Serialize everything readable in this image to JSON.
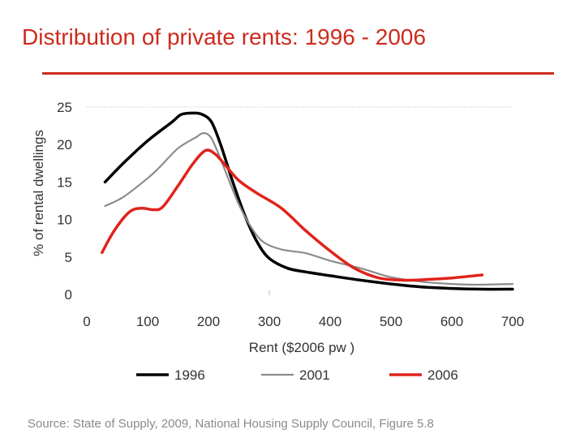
{
  "slide": {
    "title": "Distribution of private rents: 1996 - 2006",
    "source": "Source: State of Supply, 2009, National Housing Supply Council, Figure 5.8"
  },
  "colors": {
    "title": "#cc2b1d",
    "series_1996": "#000000",
    "series_2001": "#8c8c8c",
    "series_2006": "#e0231b",
    "axis_text": "#333333",
    "gridline": "#bfbfbf"
  },
  "chart_data": {
    "type": "line",
    "title": "",
    "xlabel": "Rent ($2006 pw )",
    "ylabel": "% of rental dwellings",
    "xlim": [
      0,
      700
    ],
    "ylim": [
      0,
      25
    ],
    "xticks": [
      0,
      100,
      200,
      300,
      400,
      500,
      600,
      700
    ],
    "yticks": [
      0,
      5,
      10,
      15,
      20,
      25
    ],
    "grid": "top gridline only",
    "legend_position": "bottom",
    "series": [
      {
        "name": "1996",
        "color": "#000000",
        "x": [
          30,
          60,
          100,
          140,
          155,
          175,
          190,
          205,
          220,
          240,
          260,
          280,
          300,
          330,
          360,
          400,
          450,
          500,
          550,
          600,
          650,
          700
        ],
        "y": [
          15,
          17.5,
          20.5,
          23,
          24,
          24.2,
          24,
          23,
          20,
          15,
          10.5,
          7,
          4.8,
          3.5,
          3,
          2.5,
          1.9,
          1.4,
          1,
          0.8,
          0.7,
          0.7
        ]
      },
      {
        "name": "2001",
        "color": "#8c8c8c",
        "x": [
          30,
          60,
          100,
          120,
          150,
          180,
          190,
          200,
          210,
          230,
          250,
          270,
          290,
          320,
          360,
          400,
          450,
          500,
          550,
          600,
          640,
          700
        ],
        "y": [
          11.8,
          13,
          15.5,
          17,
          19.5,
          21,
          21.5,
          21.3,
          20,
          16,
          12,
          9,
          7,
          6,
          5.5,
          4.5,
          3.5,
          2.3,
          1.7,
          1.4,
          1.3,
          1.4
        ]
      },
      {
        "name": "2006",
        "color": "#e0231b",
        "x": [
          25,
          45,
          70,
          90,
          110,
          125,
          150,
          175,
          195,
          210,
          225,
          250,
          280,
          320,
          360,
          400,
          440,
          480,
          520,
          560,
          600,
          650
        ],
        "y": [
          5.6,
          8.5,
          11,
          11.5,
          11.3,
          11.7,
          14.5,
          17.5,
          19.2,
          18.8,
          17.5,
          15.2,
          13.5,
          11.5,
          8.5,
          5.8,
          3.5,
          2.2,
          1.9,
          2.0,
          2.2,
          2.6
        ]
      }
    ]
  }
}
